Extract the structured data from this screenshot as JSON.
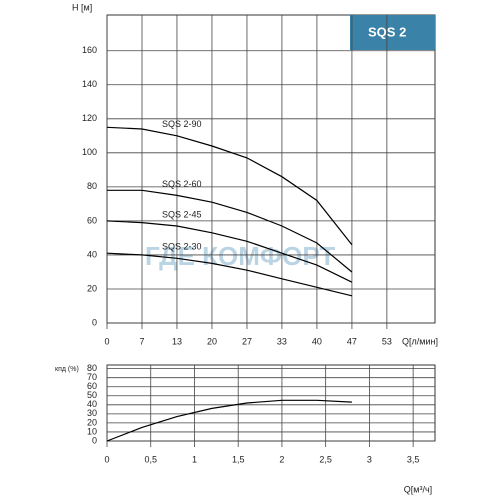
{
  "chart_data": [
    {
      "type": "line",
      "title": "SQS 2",
      "ylabel": "H [м]",
      "xlabel": "Q[л/мин]",
      "watermark": "ГДЕ КОМФОРТ",
      "xlim": [
        0,
        62.5
      ],
      "ylim": [
        0,
        181
      ],
      "xticks": [
        0,
        {
          "value": 6.67,
          "label": "7"
        },
        {
          "value": 13.33,
          "label": "13"
        },
        20,
        {
          "value": 26.67,
          "label": "27"
        },
        {
          "value": 33.33,
          "label": "33"
        },
        40,
        {
          "value": 46.67,
          "label": "47"
        },
        {
          "value": 53.33,
          "label": "53"
        }
      ],
      "yticks": [
        0,
        20,
        40,
        60,
        80,
        100,
        120,
        140,
        160
      ],
      "grid": true,
      "x": [
        0,
        6.67,
        13.33,
        20,
        26.67,
        33.33,
        40,
        46.67
      ],
      "series": [
        {
          "name": "SQS 2-90",
          "color": "#000000",
          "values": [
            115,
            114,
            110,
            104,
            97,
            86,
            72,
            46
          ]
        },
        {
          "name": "SQS 2-60",
          "color": "#000000",
          "values": [
            78,
            78,
            75,
            71,
            65,
            57,
            47,
            30
          ]
        },
        {
          "name": "SQS 2-45",
          "color": "#000000",
          "values": [
            60,
            59,
            57,
            53,
            48,
            41,
            34,
            24
          ]
        },
        {
          "name": "SQS 2-30",
          "color": "#000000",
          "values": [
            41,
            40,
            38,
            35,
            31,
            26,
            21,
            16
          ]
        }
      ]
    },
    {
      "type": "line",
      "ylabel": "кпд (%)",
      "xlabel": "Q[м³/ч]",
      "xlim": [
        0,
        3.75
      ],
      "ylim": [
        0,
        84
      ],
      "xticks": [
        0,
        {
          "value": 0.5,
          "label": "0,5"
        },
        1,
        {
          "value": 1.5,
          "label": "1,5"
        },
        2,
        {
          "value": 2.5,
          "label": "2,5"
        },
        3,
        {
          "value": 3.5,
          "label": "3,5"
        }
      ],
      "yticks": [
        0,
        10,
        20,
        30,
        40,
        50,
        60,
        70,
        80
      ],
      "grid": true,
      "x": [
        0,
        0.4,
        0.8,
        1.2,
        1.6,
        2.0,
        2.4,
        2.8
      ],
      "series": [
        {
          "color": "#000000",
          "values": [
            0,
            15,
            27,
            36,
            42,
            45,
            45,
            43
          ]
        }
      ]
    }
  ]
}
